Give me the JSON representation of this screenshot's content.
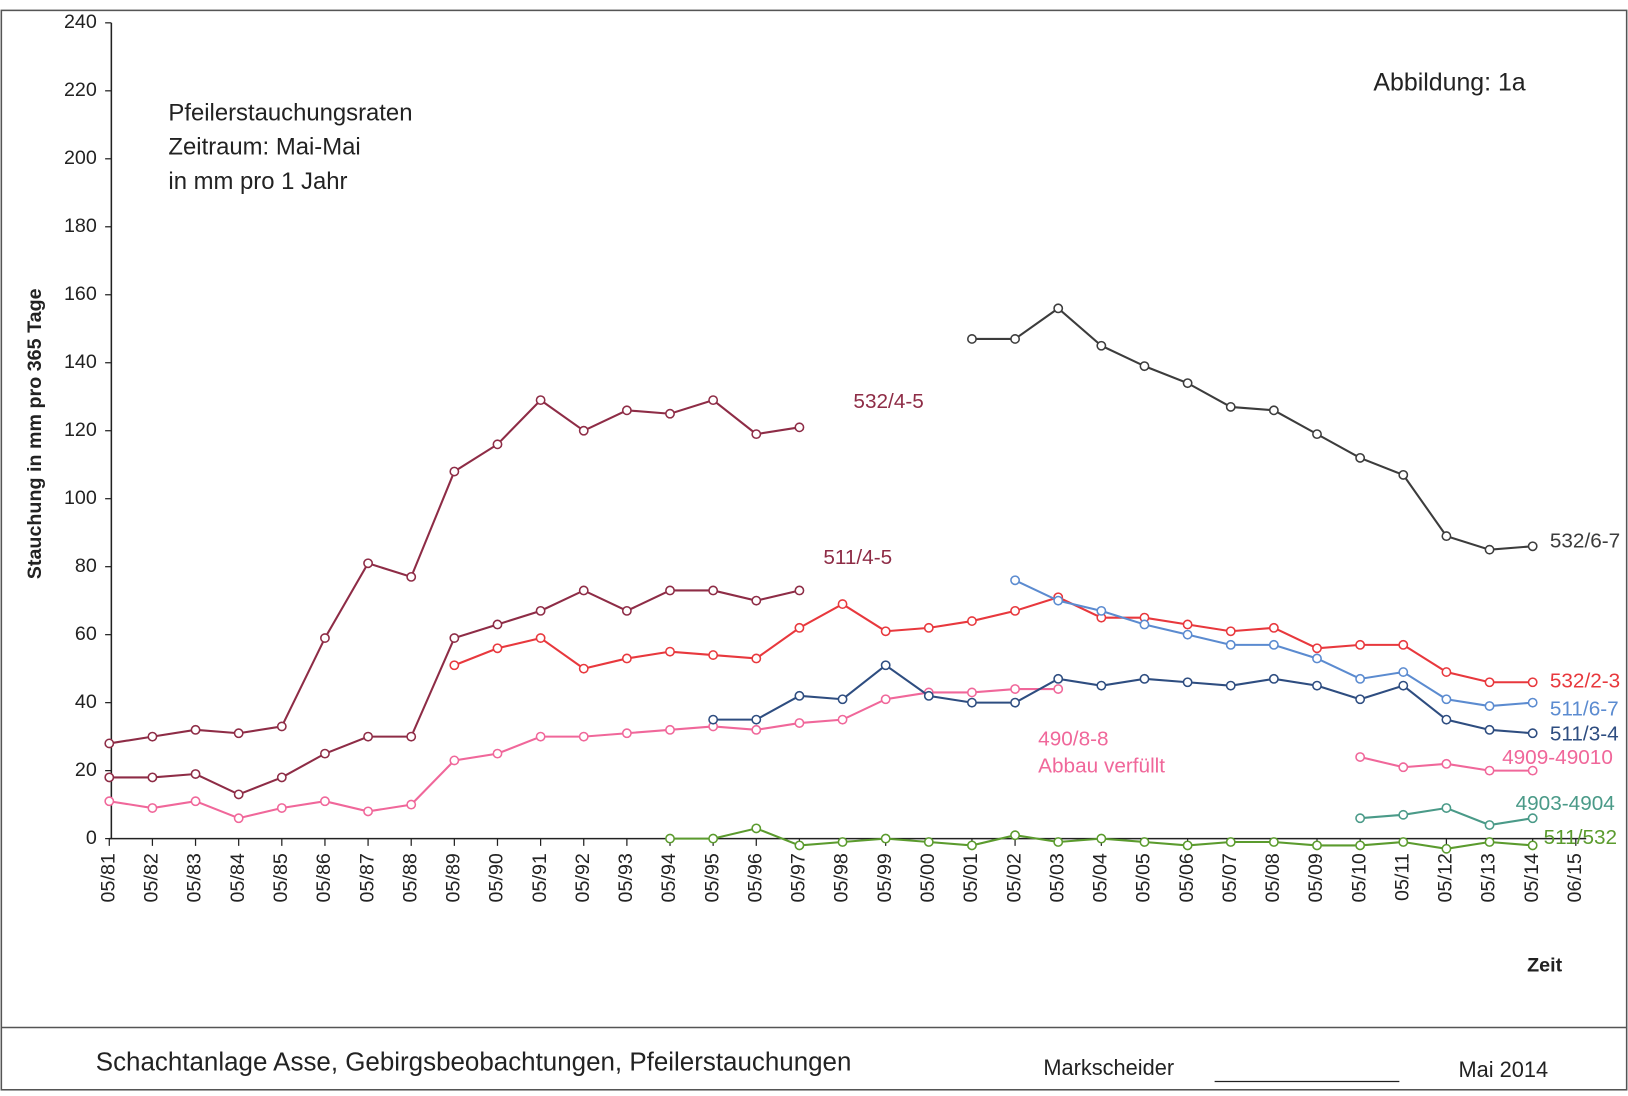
{
  "chart_data": {
    "type": "line",
    "title_lines": [
      "Pfeilerstauchungsraten",
      "Zeitraum: Mai-Mai",
      "in mm pro 1 Jahr"
    ],
    "figure_label": "Abbildung:  1a",
    "y_label": "Stauchung in mm pro 365 Tage",
    "x_label": "Zeit",
    "annotation": "Abbau verfüllt",
    "footer": {
      "title": "Schachtanlage Asse, Gebirgsbeobachtungen, Pfeilerstauchungen",
      "signature": "Markscheider",
      "date": "Mai 2014"
    },
    "categories": [
      "05/81",
      "05/82",
      "05/83",
      "05/84",
      "05/85",
      "05/86",
      "05/87",
      "05/88",
      "05/89",
      "05/90",
      "05/91",
      "05/92",
      "05/93",
      "05/94",
      "05/95",
      "05/96",
      "05/97",
      "05/98",
      "05/99",
      "05/00",
      "05/01",
      "05/02",
      "05/03",
      "05/04",
      "05/05",
      "05/06",
      "05/07",
      "05/08",
      "05/09",
      "05/10",
      "05/11",
      "05/12",
      "05/13",
      "05/14",
      "06/15"
    ],
    "ylim": [
      0,
      240
    ],
    "yticks": [
      0,
      20,
      40,
      60,
      80,
      100,
      120,
      140,
      160,
      180,
      200,
      220,
      240
    ],
    "series": [
      {
        "name": "532/4-5",
        "color": "#8e2c46",
        "values": [
          28,
          30,
          32,
          31,
          33,
          59,
          81,
          77,
          108,
          116,
          129,
          120,
          126,
          125,
          129,
          119,
          121,
          null,
          null,
          null,
          null,
          null,
          null,
          null,
          null,
          null,
          null,
          null,
          null,
          null,
          null,
          null,
          null,
          null,
          null
        ]
      },
      {
        "name": "511/4-5",
        "color": "#8e2c46",
        "values": [
          18,
          18,
          19,
          13,
          18,
          25,
          30,
          30,
          59,
          63,
          67,
          73,
          67,
          73,
          73,
          70,
          73,
          null,
          null,
          null,
          null,
          null,
          null,
          null,
          null,
          null,
          null,
          null,
          null,
          null,
          null,
          null,
          null,
          null,
          null
        ]
      },
      {
        "name": "532/2-3",
        "color": "#e8383d",
        "values": [
          null,
          null,
          null,
          null,
          null,
          null,
          null,
          null,
          51,
          56,
          59,
          50,
          53,
          55,
          54,
          53,
          62,
          69,
          61,
          62,
          64,
          67,
          71,
          65,
          65,
          63,
          61,
          62,
          56,
          57,
          57,
          49,
          46,
          46,
          null
        ]
      },
      {
        "name": "490/8-8",
        "color": "#f0679a",
        "values": [
          11,
          9,
          11,
          6,
          9,
          11,
          8,
          10,
          23,
          25,
          30,
          30,
          31,
          32,
          33,
          32,
          34,
          35,
          41,
          43,
          43,
          44,
          44,
          null,
          null,
          null,
          null,
          null,
          null,
          null,
          null,
          null,
          null,
          null,
          null
        ]
      },
      {
        "name": "532/6-7",
        "color": "#3c3c3c",
        "values": [
          null,
          null,
          null,
          null,
          null,
          null,
          null,
          null,
          null,
          null,
          null,
          null,
          null,
          null,
          null,
          null,
          null,
          null,
          null,
          null,
          147,
          147,
          156,
          145,
          139,
          134,
          127,
          126,
          119,
          112,
          107,
          89,
          85,
          86,
          null
        ]
      },
      {
        "name": "511/6-7",
        "color": "#5b8bd0",
        "values": [
          null,
          null,
          null,
          null,
          null,
          null,
          null,
          null,
          null,
          null,
          null,
          null,
          null,
          null,
          null,
          null,
          null,
          null,
          null,
          null,
          null,
          76,
          70,
          67,
          63,
          60,
          57,
          57,
          53,
          47,
          49,
          41,
          39,
          40,
          null
        ]
      },
      {
        "name": "511/3-4",
        "color": "#2e4d80",
        "values": [
          null,
          null,
          null,
          null,
          null,
          null,
          null,
          null,
          null,
          null,
          null,
          null,
          null,
          null,
          35,
          35,
          42,
          41,
          51,
          42,
          40,
          40,
          47,
          45,
          47,
          46,
          45,
          47,
          45,
          41,
          45,
          35,
          32,
          31,
          null
        ]
      },
      {
        "name": "4909-49010",
        "color": "#f0679a",
        "values": [
          null,
          null,
          null,
          null,
          null,
          null,
          null,
          null,
          null,
          null,
          null,
          null,
          null,
          null,
          null,
          null,
          null,
          null,
          null,
          null,
          null,
          null,
          null,
          null,
          null,
          null,
          null,
          null,
          null,
          24,
          21,
          22,
          20,
          20,
          null
        ]
      },
      {
        "name": "4903-4904",
        "color": "#4a9a88",
        "values": [
          null,
          null,
          null,
          null,
          null,
          null,
          null,
          null,
          null,
          null,
          null,
          null,
          null,
          null,
          null,
          null,
          null,
          null,
          null,
          null,
          null,
          null,
          null,
          null,
          null,
          null,
          null,
          null,
          null,
          6,
          7,
          9,
          4,
          6,
          null
        ]
      },
      {
        "name": "511/532",
        "color": "#5b9b2e",
        "values": [
          null,
          null,
          null,
          null,
          null,
          null,
          null,
          null,
          null,
          null,
          null,
          null,
          null,
          0,
          0,
          3,
          -2,
          -1,
          0,
          -1,
          -2,
          1,
          -1,
          0,
          -1,
          -2,
          -1,
          -1,
          -2,
          -2,
          -1,
          -3,
          -1,
          -2,
          null
        ]
      }
    ]
  }
}
